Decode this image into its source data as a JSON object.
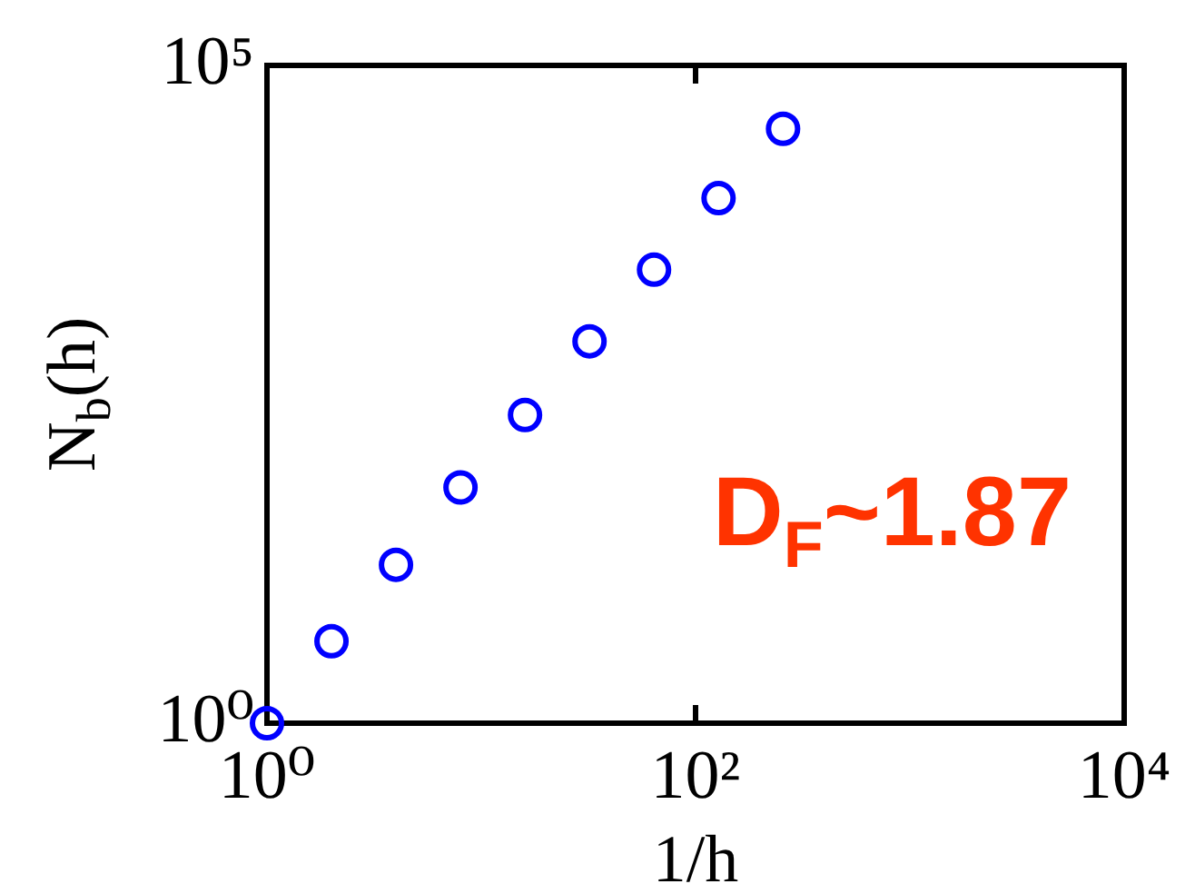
{
  "chart_data": {
    "type": "scatter",
    "x": [
      1,
      2,
      4,
      8,
      16,
      32,
      64,
      128,
      256
    ],
    "values": [
      1,
      4.2,
      16,
      62,
      220,
      800,
      2800,
      9800,
      33000
    ],
    "color": "#0000ff",
    "marker": "circle",
    "log": "xy",
    "xlim": [
      1,
      10000
    ],
    "ylim": [
      1,
      100000
    ],
    "xticks": [
      {
        "value": 1,
        "label": "10⁰"
      },
      {
        "value": 100,
        "label": "10²"
      },
      {
        "value": 10000,
        "label": "10⁴"
      }
    ],
    "yticks": [
      {
        "value": 1,
        "label": "10⁰"
      },
      {
        "value": 100000,
        "label": "10⁵"
      }
    ],
    "xlabel": "1/h",
    "ylabel": "N$_{b}$(h)",
    "annotations": [
      "D$_{F}$~1.87"
    ]
  }
}
